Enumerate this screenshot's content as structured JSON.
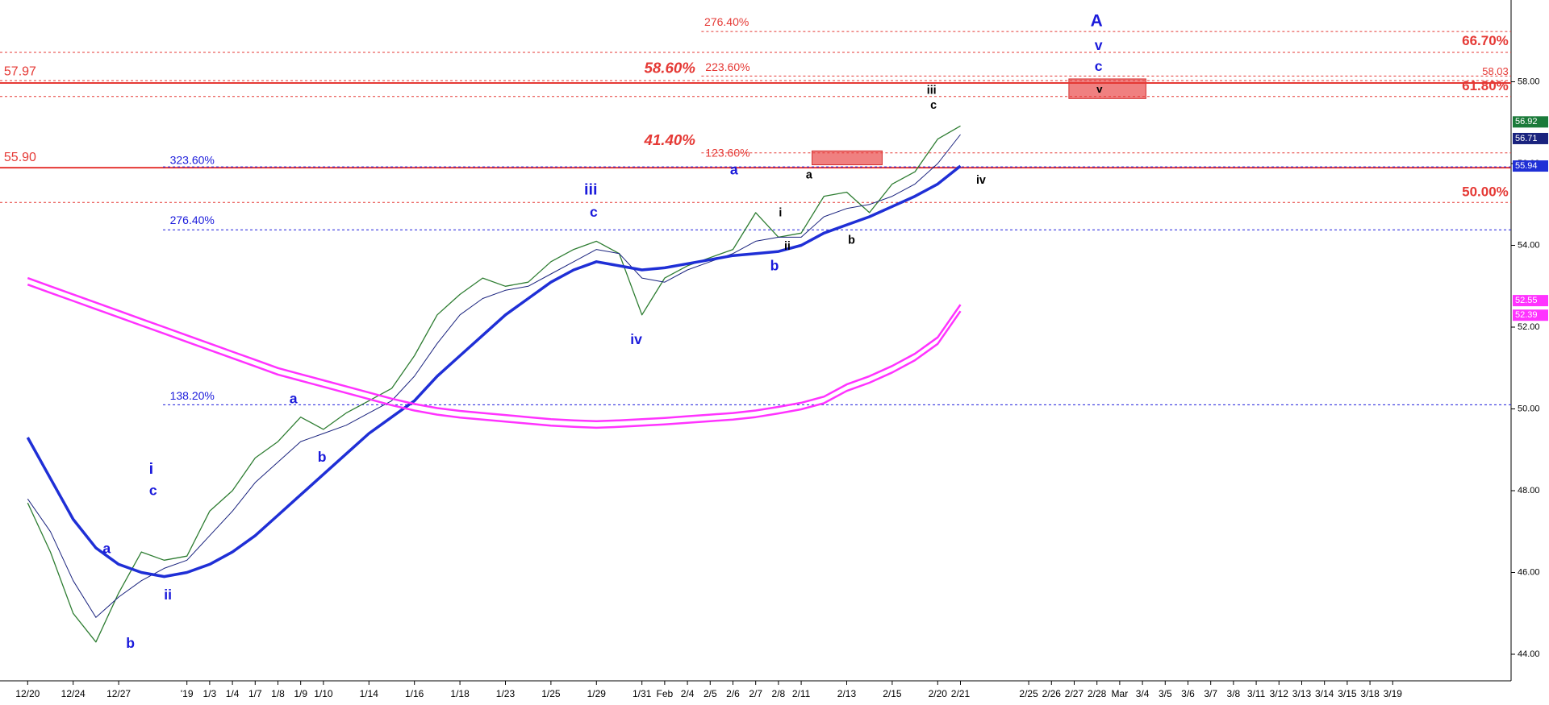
{
  "chart_data": {
    "type": "line",
    "categories": [
      "12/20",
      null,
      "12/24",
      null,
      "12/27",
      null,
      null,
      "'19",
      "1/3",
      "1/4",
      "1/7",
      "1/8",
      "1/9",
      "1/10",
      null,
      "1/14",
      null,
      "1/16",
      null,
      "1/18",
      null,
      "1/23",
      null,
      "1/25",
      null,
      "1/29",
      null,
      "1/31",
      "Feb",
      "2/4",
      "2/5",
      "2/6",
      "2/7",
      "2/8",
      "2/11",
      null,
      "2/13",
      null,
      "2/15",
      null,
      "2/20",
      "2/21",
      null,
      null,
      "2/25",
      "2/26",
      "2/27",
      "2/28",
      "Mar",
      "3/4",
      "3/5",
      "3/6",
      "3/7",
      "3/8",
      "3/11",
      "3/12",
      "3/13",
      "3/14",
      "3/15",
      "3/18",
      "3/19"
    ],
    "series": [
      {
        "color": "#2e7d32",
        "values": [
          47.7,
          46.5,
          45.0,
          44.3,
          45.5,
          46.5,
          46.3,
          46.4,
          47.5,
          48.0,
          48.8,
          49.2,
          49.8,
          49.5,
          49.9,
          50.2,
          50.5,
          51.3,
          52.3,
          52.8,
          53.2,
          53.0,
          53.1,
          53.6,
          53.9,
          54.1,
          53.8,
          52.3,
          53.2,
          53.5,
          53.7,
          53.9,
          54.8,
          54.2,
          54.3,
          55.2,
          55.3,
          54.8,
          55.5,
          55.8,
          56.6,
          56.92,
          null,
          null,
          null,
          null,
          null,
          null,
          null,
          null,
          null,
          null,
          null,
          null,
          null,
          null,
          null,
          null,
          null,
          null,
          null
        ]
      },
      {
        "color": "#1a237e",
        "values": [
          47.8,
          47.0,
          45.8,
          44.9,
          45.4,
          45.8,
          46.1,
          46.3,
          46.9,
          47.5,
          48.2,
          48.7,
          49.2,
          49.4,
          49.6,
          49.9,
          50.2,
          50.8,
          51.6,
          52.3,
          52.7,
          52.9,
          53.0,
          53.3,
          53.6,
          53.9,
          53.8,
          53.2,
          53.1,
          53.4,
          53.6,
          53.8,
          54.1,
          54.2,
          54.2,
          54.7,
          54.9,
          55.0,
          55.2,
          55.5,
          56.0,
          56.71,
          null,
          null,
          null,
          null,
          null,
          null,
          null,
          null,
          null,
          null,
          null,
          null,
          null,
          null,
          null,
          null,
          null,
          null,
          null
        ]
      },
      {
        "color": "#1f2fd6",
        "values": [
          49.3,
          48.3,
          47.3,
          46.6,
          46.2,
          46.0,
          45.9,
          46.0,
          46.2,
          46.5,
          46.9,
          47.4,
          47.9,
          48.4,
          48.9,
          49.4,
          49.8,
          50.2,
          50.8,
          51.3,
          51.8,
          52.3,
          52.7,
          53.1,
          53.4,
          53.6,
          53.5,
          53.4,
          53.45,
          53.55,
          53.65,
          53.75,
          53.8,
          53.85,
          54.0,
          54.3,
          54.5,
          54.7,
          54.95,
          55.2,
          55.5,
          55.94,
          null,
          null,
          null,
          null,
          null,
          null,
          null,
          null,
          null,
          null,
          null,
          null,
          null,
          null,
          null,
          null,
          null,
          null,
          null
        ]
      },
      {
        "color": "#ff33ff",
        "values": [
          53.2,
          53.0,
          52.8,
          52.6,
          52.4,
          52.2,
          52.0,
          51.8,
          51.6,
          51.4,
          51.2,
          51.0,
          50.85,
          50.7,
          50.55,
          50.4,
          50.25,
          50.12,
          50.02,
          49.95,
          49.9,
          49.85,
          49.8,
          49.75,
          49.72,
          49.7,
          49.72,
          49.75,
          49.78,
          49.82,
          49.86,
          49.9,
          49.96,
          50.05,
          50.15,
          50.3,
          50.6,
          50.8,
          51.05,
          51.35,
          51.75,
          52.55,
          null,
          null,
          null,
          null,
          null,
          null,
          null,
          null,
          null,
          null,
          null,
          null,
          null,
          null,
          null,
          null,
          null,
          null,
          null
        ]
      },
      {
        "color": "#ff33ff",
        "values": [
          53.04,
          52.84,
          52.64,
          52.44,
          52.24,
          52.04,
          51.84,
          51.64,
          51.44,
          51.24,
          51.04,
          50.84,
          50.69,
          50.54,
          50.39,
          50.24,
          50.09,
          49.96,
          49.86,
          49.79,
          49.74,
          49.69,
          49.64,
          49.59,
          49.56,
          49.54,
          49.56,
          49.59,
          49.62,
          49.66,
          49.7,
          49.74,
          49.8,
          49.89,
          49.99,
          50.14,
          50.44,
          50.64,
          50.89,
          51.19,
          51.59,
          52.39,
          null,
          null,
          null,
          null,
          null,
          null,
          null,
          null,
          null,
          null,
          null,
          null,
          null,
          null,
          null,
          null,
          null,
          null,
          null
        ]
      }
    ],
    "ylim": [
      43.35,
      60.0
    ],
    "yticks": [
      {
        "value": 44,
        "label": "44.00"
      },
      {
        "value": 46,
        "label": "46.00"
      },
      {
        "value": 48,
        "label": "48.00"
      },
      {
        "value": 50,
        "label": "50.00"
      },
      {
        "value": 52,
        "label": "52.00"
      },
      {
        "value": 54,
        "label": "54.00"
      },
      {
        "value": 56,
        "label": "56.00"
      },
      {
        "value": 58,
        "label": "58.00"
      }
    ],
    "levels": [
      {
        "price": 59.23,
        "label": "276.40%",
        "color": "#e53935",
        "style": "dashed"
      },
      {
        "price": 58.72,
        "label": "66.70%",
        "color": "#e53935",
        "style": "dashed"
      },
      {
        "price": 58.14,
        "label": "223.60%",
        "color": "#e53935",
        "style": "dashed"
      },
      {
        "price": 58.03,
        "label": "58.03",
        "color": "#e53935",
        "style": "dashed"
      },
      {
        "price": 57.97,
        "label": "57.97",
        "color": "#e53935",
        "style": "solid"
      },
      {
        "price": 57.64,
        "label": "61.80%",
        "color": "#e53935",
        "style": "dashed"
      },
      {
        "price": 56.26,
        "label": "123.60%",
        "color": "#e53935",
        "style": "dashed"
      },
      {
        "price": 55.9,
        "label": "55.90",
        "color": "#e53935",
        "style": "solid"
      },
      {
        "price": 55.92,
        "label": "323.60%",
        "color": "#1a1adb",
        "style": "dashed"
      },
      {
        "price": 55.05,
        "label": "50.00%",
        "color": "#e53935",
        "style": "dashed"
      },
      {
        "price": 54.38,
        "label": "276.40%",
        "color": "#1a1adb",
        "style": "dashed"
      },
      {
        "price": 50.1,
        "label": "138.20%",
        "color": "#1a1adb",
        "style": "dashed"
      }
    ],
    "zones": [
      {
        "low": 55.97,
        "high": 56.31,
        "color": "#f08080"
      },
      {
        "low": 57.59,
        "high": 58.07,
        "color": "#f08080"
      }
    ],
    "annotations": [
      {
        "text": "A",
        "color": "#1a1adb"
      },
      {
        "text": "v",
        "color": "#1a1adb"
      },
      {
        "text": "c",
        "color": "#1a1adb"
      },
      {
        "text": "v",
        "color": "#000000"
      },
      {
        "text": "iii",
        "color": "#000000"
      },
      {
        "text": "c",
        "color": "#000000"
      },
      {
        "text": "iv",
        "color": "#000000"
      },
      {
        "text": "a",
        "color": "#1a1adb"
      },
      {
        "text": "iii",
        "color": "#1a1adb"
      },
      {
        "text": "c",
        "color": "#1a1adb"
      },
      {
        "text": "a",
        "color": "#000000"
      },
      {
        "text": "i",
        "color": "#000000"
      },
      {
        "text": "ii",
        "color": "#000000"
      },
      {
        "text": "b",
        "color": "#1a1adb"
      },
      {
        "text": "b",
        "color": "#000000"
      },
      {
        "text": "iv",
        "color": "#1a1adb"
      },
      {
        "text": "a",
        "color": "#1a1adb"
      },
      {
        "text": "b",
        "color": "#1a1adb"
      },
      {
        "text": "i",
        "color": "#1a1adb"
      },
      {
        "text": "c",
        "color": "#1a1adb"
      },
      {
        "text": "a",
        "color": "#1a1adb"
      },
      {
        "text": "ii",
        "color": "#1a1adb"
      },
      {
        "text": "b",
        "color": "#1a1adb"
      },
      {
        "text": "58.60%",
        "color": "#e53935"
      },
      {
        "text": "41.40%",
        "color": "#e53935"
      }
    ]
  }
}
